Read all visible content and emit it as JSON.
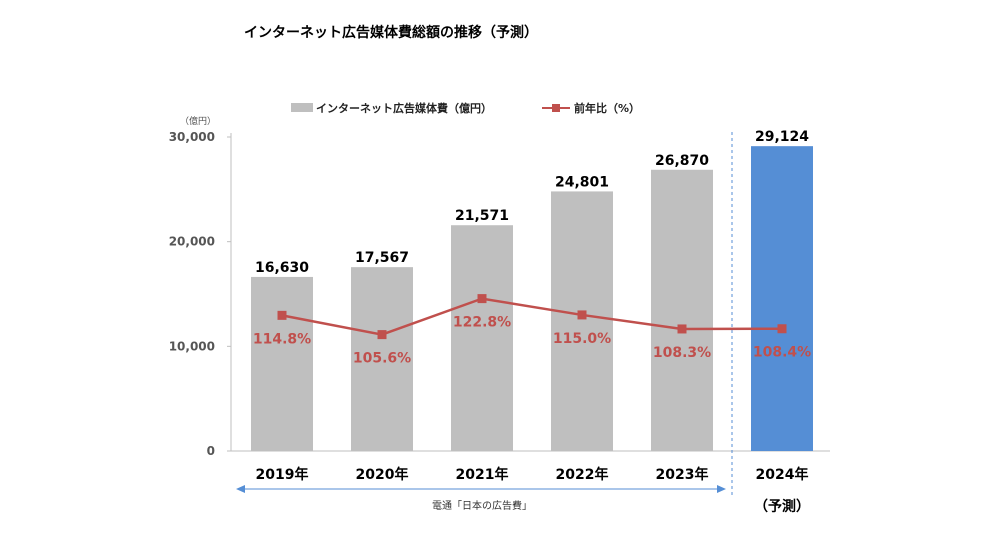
{
  "chart_data": {
    "type": "bar",
    "title": "インターネット広告媒体費総額の推移（予測）",
    "unit_label": "（億円）",
    "categories": [
      "2019年",
      "2020年",
      "2021年",
      "2022年",
      "2023年",
      "2024年"
    ],
    "forecast_note": "（予測）",
    "series": [
      {
        "name": "インターネット広告媒体費（億円）",
        "type": "bar",
        "values": [
          16630,
          17567,
          21571,
          24801,
          26870,
          29124
        ],
        "value_labels": [
          "16,630",
          "17,567",
          "21,571",
          "24,801",
          "26,870",
          "29,124"
        ]
      },
      {
        "name": "前年比（%）",
        "type": "line",
        "values": [
          114.8,
          105.6,
          122.8,
          115.0,
          108.3,
          108.4
        ],
        "value_labels": [
          "114.8%",
          "105.6%",
          "122.8%",
          "115.0%",
          "108.3%",
          "108.4%"
        ]
      }
    ],
    "yticks": [
      "0",
      "10,000",
      "20,000",
      "30,000"
    ],
    "ylim": [
      0,
      30000
    ],
    "grid": false,
    "legend_position": "top",
    "source": "電通「日本の広告費」",
    "colors": {
      "bar_actual": "#bfbfbf",
      "bar_forecast": "#558ed5",
      "line": "#c0504d",
      "divider": "#558ed5",
      "arrow": "#558ed5"
    }
  }
}
